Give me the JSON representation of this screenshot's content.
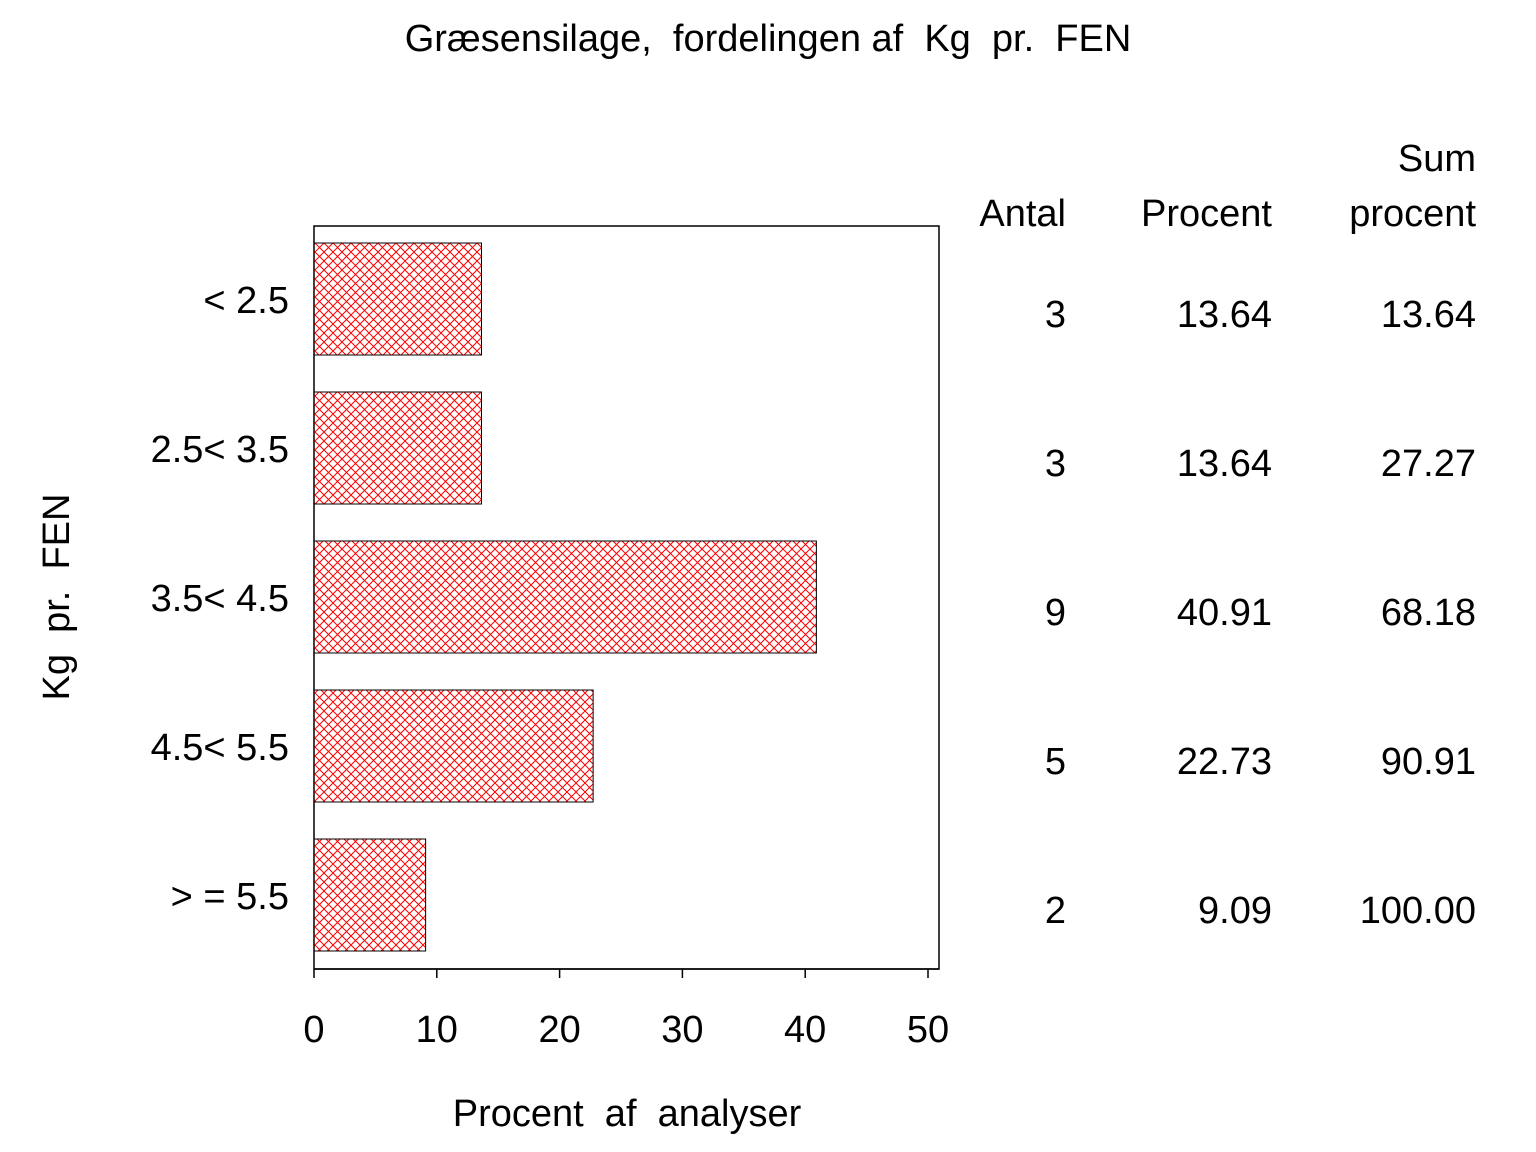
{
  "chart_data": {
    "type": "bar",
    "orientation": "horizontal",
    "title": "Græsensilage,  fordelingen af  Kg  pr.  FEN",
    "xlabel": "Procent  af  analyser",
    "ylabel": "Kg  pr.  FEN",
    "categories": [
      "< 2.5",
      "2.5< 3.5",
      "3.5< 4.5",
      "4.5< 5.5",
      "> = 5.5"
    ],
    "values": [
      13.64,
      13.64,
      40.91,
      22.73,
      9.09
    ],
    "xlim": [
      0,
      50
    ],
    "xticks": [
      "0",
      "10",
      "20",
      "30",
      "40",
      "50"
    ],
    "grid": false,
    "bar_color": "#ff0000",
    "bar_fill": "crosshatch",
    "table": {
      "headers": [
        [
          "",
          "Antal"
        ],
        [
          "",
          "Procent"
        ],
        [
          "Sum",
          "procent"
        ]
      ],
      "rows": [
        [
          "3",
          "13.64",
          "13.64"
        ],
        [
          "3",
          "13.64",
          "27.27"
        ],
        [
          "9",
          "40.91",
          "68.18"
        ],
        [
          "5",
          "22.73",
          "90.91"
        ],
        [
          "2",
          "9.09",
          "100.00"
        ]
      ]
    }
  }
}
